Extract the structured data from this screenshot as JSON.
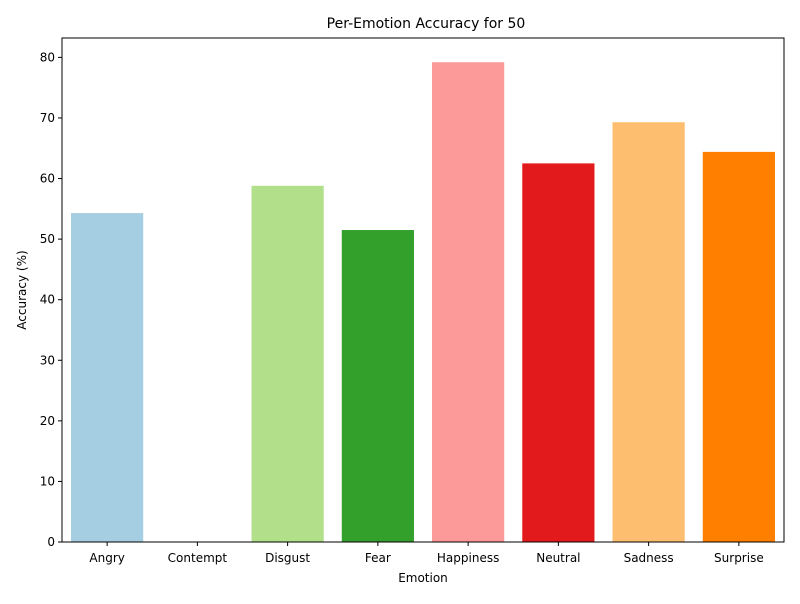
{
  "chart_data": {
    "type": "bar",
    "title": "Per-Emotion Accuracy for 50",
    "xlabel": "Emotion",
    "ylabel": "Accuracy (%)",
    "categories": [
      "Angry",
      "Contempt",
      "Disgust",
      "Fear",
      "Happiness",
      "Neutral",
      "Sadness",
      "Surprise"
    ],
    "values": [
      54.3,
      0.0,
      58.8,
      51.5,
      79.2,
      62.5,
      69.3,
      64.4
    ],
    "colors": [
      "#a6cee3",
      "#1f78b4",
      "#b2df8a",
      "#33a02c",
      "#fb9a99",
      "#e31a1c",
      "#fdbf6f",
      "#ff7f00"
    ],
    "ylim": [
      0,
      83.2
    ],
    "yticks": [
      0,
      10,
      20,
      30,
      40,
      50,
      60,
      70,
      80
    ],
    "grid": false,
    "legend": "none"
  }
}
